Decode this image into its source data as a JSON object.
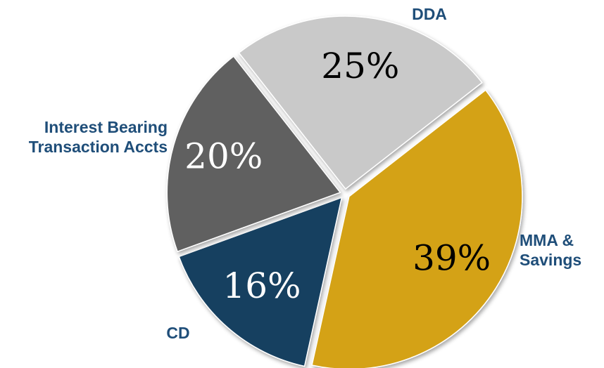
{
  "chart_data": {
    "type": "pie",
    "categories": [
      "DDA",
      "MMA & Savings",
      "CD",
      "Interest Bearing Transaction Accts"
    ],
    "values": [
      25,
      39,
      16,
      20
    ],
    "value_labels": [
      "25%",
      "39%",
      "16%",
      "20%"
    ],
    "colors": [
      "#c9c9c9",
      "#d4a216",
      "#143f60",
      "#606060"
    ]
  }
}
